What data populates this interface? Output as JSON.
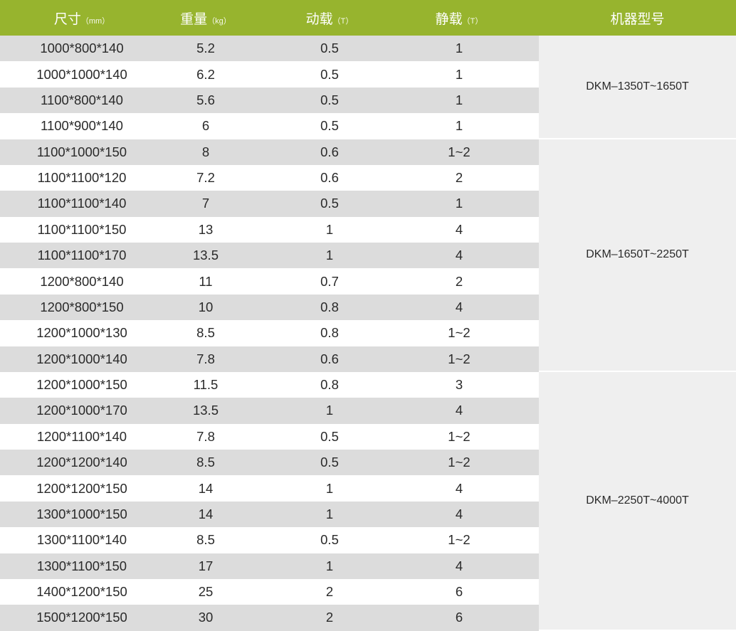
{
  "colors": {
    "header": "#97b42e",
    "row_alt": "#dcdcdc",
    "model_bg": "#efefef"
  },
  "header": [
    {
      "label": "尺寸",
      "unit": "（mm）"
    },
    {
      "label": "重量",
      "unit": "（kg）"
    },
    {
      "label": "动载",
      "unit": "（T）"
    },
    {
      "label": "静载",
      "unit": "（T）"
    },
    {
      "label": "机器型号",
      "unit": ""
    }
  ],
  "rows": [
    [
      "1000*800*140",
      "5.2",
      "0.5",
      "1"
    ],
    [
      "1000*1000*140",
      "6.2",
      "0.5",
      "1"
    ],
    [
      "1100*800*140",
      "5.6",
      "0.5",
      "1"
    ],
    [
      "1100*900*140",
      "6",
      "0.5",
      "1"
    ],
    [
      "1100*1000*150",
      "8",
      "0.6",
      "1~2"
    ],
    [
      "1100*1100*120",
      "7.2",
      "0.6",
      "2"
    ],
    [
      "1100*1100*140",
      "7",
      "0.5",
      "1"
    ],
    [
      "1100*1100*150",
      "13",
      "1",
      "4"
    ],
    [
      "1100*1100*170",
      "13.5",
      "1",
      "4"
    ],
    [
      "1200*800*140",
      "11",
      "0.7",
      "2"
    ],
    [
      "1200*800*150",
      "10",
      "0.8",
      "4"
    ],
    [
      "1200*1000*130",
      "8.5",
      "0.8",
      "1~2"
    ],
    [
      "1200*1000*140",
      "7.8",
      "0.6",
      "1~2"
    ],
    [
      "1200*1000*150",
      "11.5",
      "0.8",
      "3"
    ],
    [
      "1200*1000*170",
      "13.5",
      "1",
      "4"
    ],
    [
      "1200*1100*140",
      "7.8",
      "0.5",
      "1~2"
    ],
    [
      "1200*1200*140",
      "8.5",
      "0.5",
      "1~2"
    ],
    [
      "1200*1200*150",
      "14",
      "1",
      "4"
    ],
    [
      "1300*1000*150",
      "14",
      "1",
      "4"
    ],
    [
      "1300*1100*140",
      "8.5",
      "0.5",
      "1~2"
    ],
    [
      "1300*1100*150",
      "17",
      "1",
      "4"
    ],
    [
      "1400*1200*150",
      "25",
      "2",
      "6"
    ],
    [
      "1500*1200*150",
      "30",
      "2",
      "6"
    ]
  ],
  "models": [
    {
      "name": "DKM–1350T~1650T",
      "rows": 4
    },
    {
      "name": "DKM–1650T~2250T",
      "rows": 9
    },
    {
      "name": "DKM–2250T~4000T",
      "rows": 10
    }
  ]
}
